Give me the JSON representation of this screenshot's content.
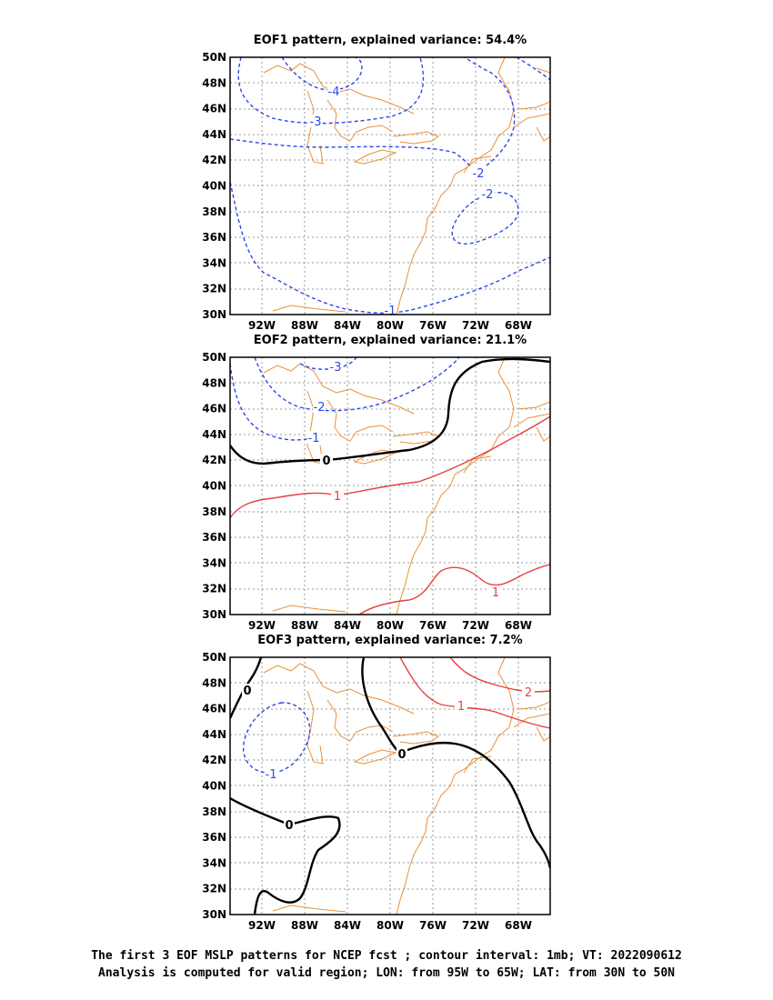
{
  "panels": [
    {
      "title": "EOF1 pattern, explained variance: 54.4%",
      "contour_labels": [
        "-4",
        "-3",
        "-2",
        "-2",
        "-1"
      ]
    },
    {
      "title": "EOF2 pattern, explained variance: 21.1%",
      "contour_labels": [
        "-3",
        "-2",
        "-1",
        "0",
        "1",
        "1"
      ]
    },
    {
      "title": "EOF3 pattern, explained variance: 7.2%",
      "contour_labels": [
        "-1",
        "0",
        "0",
        "0",
        "1",
        "2"
      ]
    }
  ],
  "axes": {
    "lat_ticks": [
      "50N",
      "48N",
      "46N",
      "44N",
      "42N",
      "40N",
      "38N",
      "36N",
      "34N",
      "32N",
      "30N"
    ],
    "lon_ticks": [
      "92W",
      "88W",
      "84W",
      "80W",
      "76W",
      "72W",
      "68W"
    ]
  },
  "caption": {
    "line1": "The first 3 EOF MSLP patterns for NCEP fcst ; contour interval: 1mb; VT: 2022090612",
    "line2": "Analysis is computed for valid region; LON: from 95W to 65W; LAT: from 30N to 50N"
  },
  "colors": {
    "coastline": "#e8913c",
    "negative_contour": "#2b47e8",
    "positive_contour": "#e84040",
    "zero_contour": "#000000",
    "grid": "#9a9a9a"
  }
}
